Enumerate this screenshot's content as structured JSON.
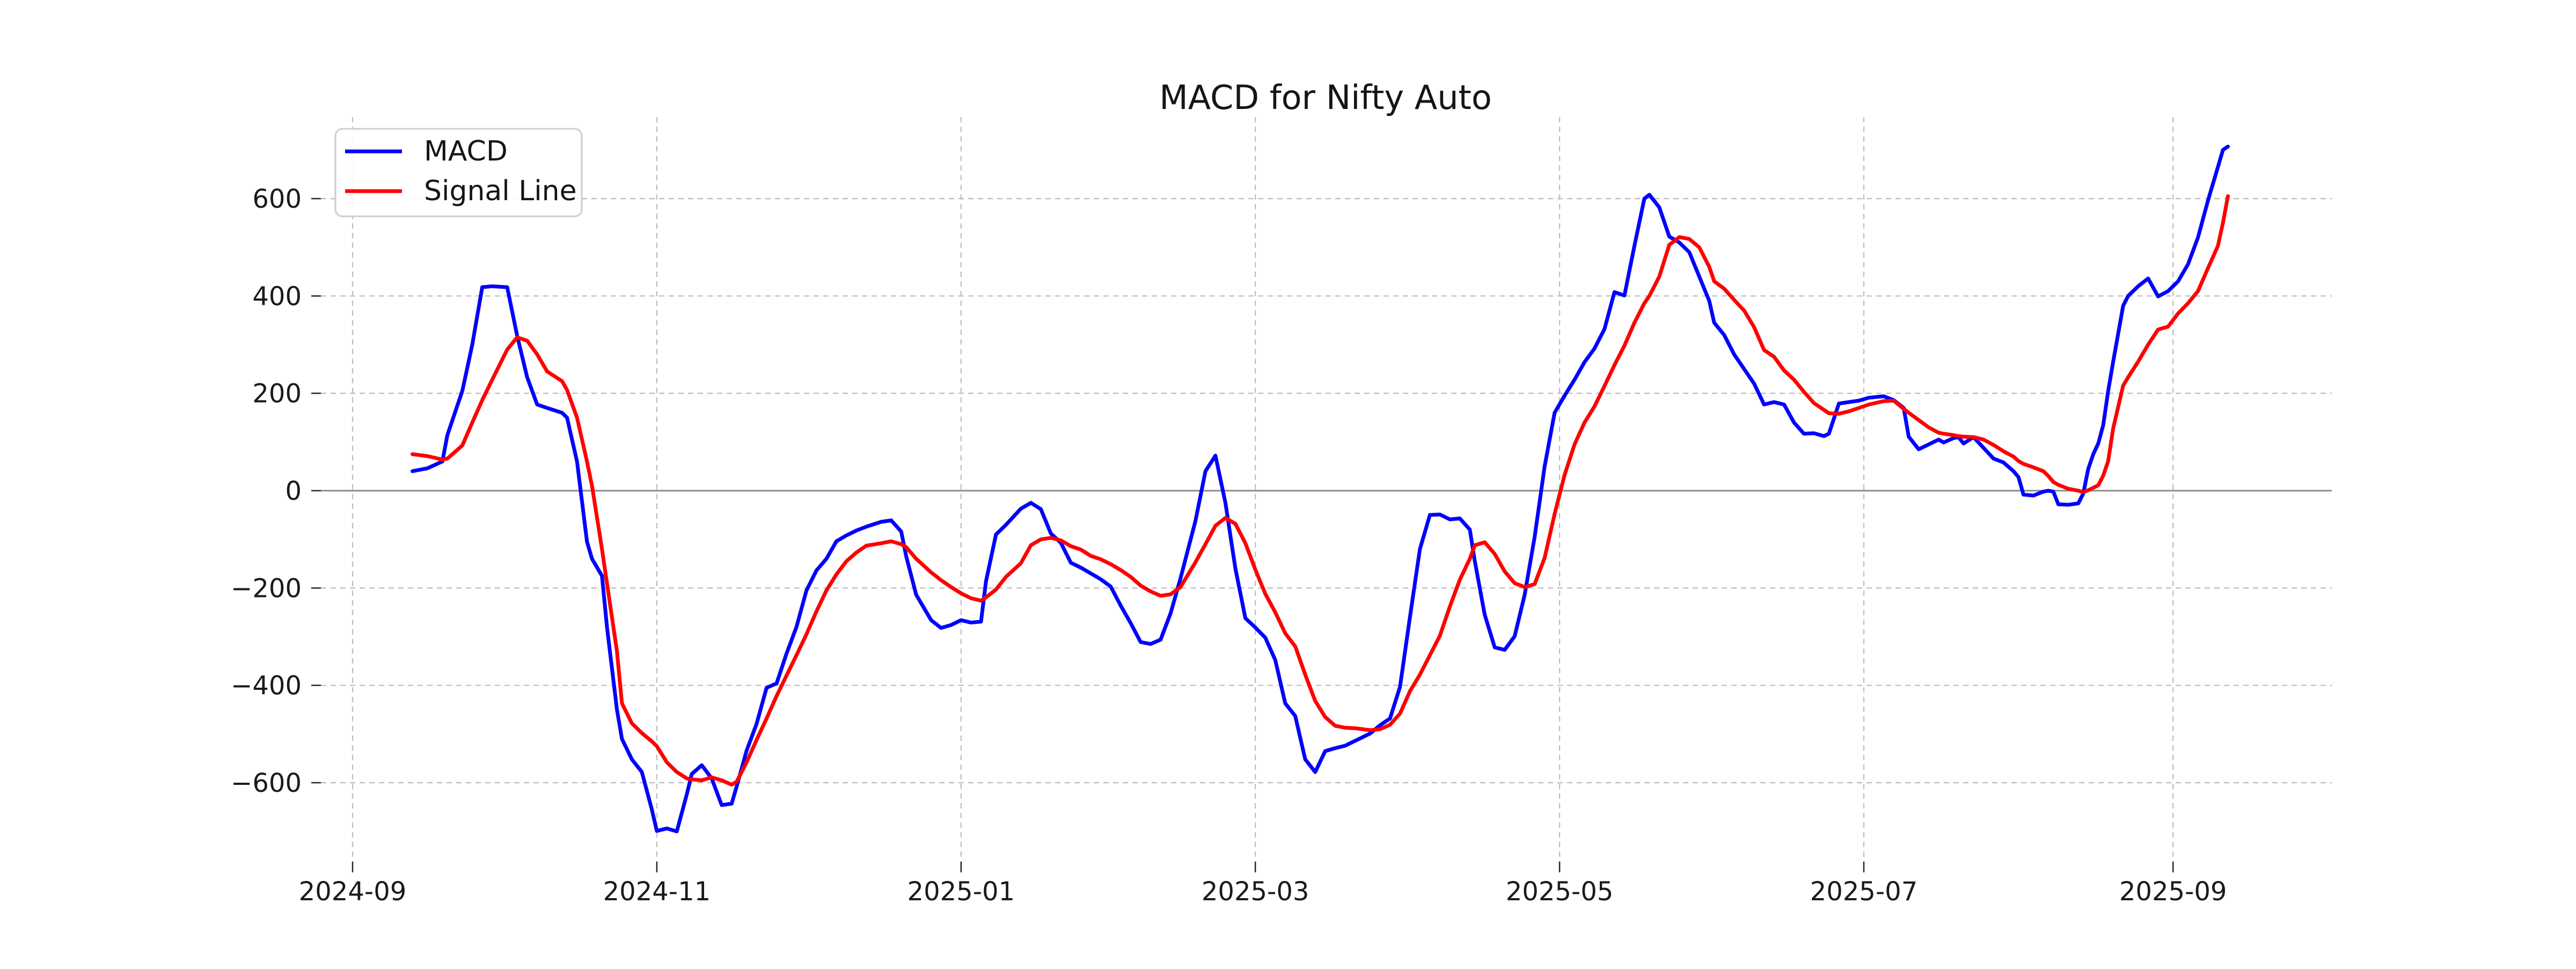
{
  "title": "MACD for Nifty Auto",
  "colors": {
    "macd": "#0000ff",
    "signal": "#ff0000",
    "grid": "#bdbdbd",
    "zero_line": "#8c8c8c",
    "text": "#1a1a1a",
    "legend_border": "#cdcdcd",
    "background": "#ffffff"
  },
  "legend": {
    "position": "upper left",
    "items": [
      {
        "label": "MACD",
        "color_key": "macd"
      },
      {
        "label": "Signal Line",
        "color_key": "signal"
      }
    ]
  },
  "axes": {
    "y_tick_labels": [
      "600",
      "400",
      "200",
      "0",
      "−200",
      "−400",
      "−600"
    ],
    "y_tick_values": [
      600,
      400,
      200,
      0,
      -200,
      -400,
      -600
    ],
    "x_tick_labels": [
      "2024-09",
      "2024-11",
      "2025-01",
      "2025-03",
      "2025-05",
      "2025-07",
      "2025-09"
    ],
    "x_tick_day_offsets": [
      0,
      61,
      122,
      181,
      242,
      303,
      365
    ],
    "ylim": [
      -762,
      768
    ],
    "grid": "dashed",
    "zero_line": true
  },
  "chart_data": {
    "type": "line",
    "title": "MACD for Nifty Auto",
    "xlabel": "",
    "ylabel": "",
    "x_range": [
      "2024-09-13",
      "2025-09-12"
    ],
    "legend_position": "upper left",
    "series_names": [
      "MACD",
      "Signal Line"
    ],
    "points_format": [
      "date",
      "MACD",
      "Signal Line"
    ],
    "points": [
      [
        "2024-09-13",
        40,
        75
      ],
      [
        "2024-09-16",
        46,
        71
      ],
      [
        "2024-09-19",
        60,
        64
      ],
      [
        "2024-09-20",
        114,
        66
      ],
      [
        "2024-09-23",
        205,
        93
      ],
      [
        "2024-09-25",
        300,
        140
      ],
      [
        "2024-09-27",
        418,
        186
      ],
      [
        "2024-09-29",
        420,
        228
      ],
      [
        "2024-10-02",
        418,
        290
      ],
      [
        "2024-10-04",
        318,
        315
      ],
      [
        "2024-10-06",
        233,
        308
      ],
      [
        "2024-10-08",
        177,
        280
      ],
      [
        "2024-10-10",
        170,
        245
      ],
      [
        "2024-10-13",
        160,
        225
      ],
      [
        "2024-10-14",
        150,
        207
      ],
      [
        "2024-10-16",
        60,
        150
      ],
      [
        "2024-10-18",
        -105,
        60
      ],
      [
        "2024-10-19",
        -140,
        10
      ],
      [
        "2024-10-21",
        -175,
        -120
      ],
      [
        "2024-10-22",
        -280,
        -190
      ],
      [
        "2024-10-24",
        -450,
        -330
      ],
      [
        "2024-10-25",
        -510,
        -437
      ],
      [
        "2024-10-27",
        -552,
        -478
      ],
      [
        "2024-10-29",
        -578,
        -498
      ],
      [
        "2024-10-31",
        -655,
        -515
      ],
      [
        "2024-11-01",
        -699,
        -525
      ],
      [
        "2024-11-03",
        -694,
        -558
      ],
      [
        "2024-11-05",
        -700,
        -578
      ],
      [
        "2024-11-07",
        -624,
        -591
      ],
      [
        "2024-11-08",
        -582,
        -593
      ],
      [
        "2024-11-10",
        -564,
        -595
      ],
      [
        "2024-11-12",
        -591,
        -589
      ],
      [
        "2024-11-14",
        -646,
        -595
      ],
      [
        "2024-11-16",
        -643,
        -604
      ],
      [
        "2024-11-17",
        -608,
        -598
      ],
      [
        "2024-11-19",
        -534,
        -558
      ],
      [
        "2024-11-21",
        -479,
        -512
      ],
      [
        "2024-11-23",
        -405,
        -468
      ],
      [
        "2024-11-25",
        -396,
        -422
      ],
      [
        "2024-11-27",
        -335,
        -380
      ],
      [
        "2024-11-29",
        -280,
        -338
      ],
      [
        "2024-12-01",
        -205,
        -295
      ],
      [
        "2024-12-03",
        -164,
        -248
      ],
      [
        "2024-12-05",
        -140,
        -205
      ],
      [
        "2024-12-07",
        -104,
        -172
      ],
      [
        "2024-12-09",
        -92,
        -145
      ],
      [
        "2024-12-11",
        -82,
        -127
      ],
      [
        "2024-12-13",
        -74,
        -113
      ],
      [
        "2024-12-16",
        -64,
        -108
      ],
      [
        "2024-12-18",
        -61,
        -104
      ],
      [
        "2024-12-20",
        -84,
        -110
      ],
      [
        "2024-12-21",
        -135,
        -116
      ],
      [
        "2024-12-23",
        -214,
        -140
      ],
      [
        "2024-12-26",
        -266,
        -168
      ],
      [
        "2024-12-28",
        -282,
        -184
      ],
      [
        "2024-12-30",
        -276,
        -198
      ],
      [
        "2025-01-01",
        -266,
        -211
      ],
      [
        "2025-01-03",
        -271,
        -221
      ],
      [
        "2025-01-05",
        -269,
        -226
      ],
      [
        "2025-01-06",
        -186,
        -219
      ],
      [
        "2025-01-08",
        -90,
        -203
      ],
      [
        "2025-01-10",
        -70,
        -177
      ],
      [
        "2025-01-13",
        -37,
        -149
      ],
      [
        "2025-01-15",
        -25,
        -112
      ],
      [
        "2025-01-17",
        -38,
        -100
      ],
      [
        "2025-01-19",
        -88,
        -97
      ],
      [
        "2025-01-21",
        -107,
        -102
      ],
      [
        "2025-01-23",
        -148,
        -114
      ],
      [
        "2025-01-25",
        -158,
        -121
      ],
      [
        "2025-01-27",
        -170,
        -134
      ],
      [
        "2025-01-29",
        -182,
        -141
      ],
      [
        "2025-01-31",
        -197,
        -151
      ],
      [
        "2025-02-02",
        -236,
        -163
      ],
      [
        "2025-02-04",
        -272,
        -177
      ],
      [
        "2025-02-06",
        -311,
        -195
      ],
      [
        "2025-02-08",
        -315,
        -207
      ],
      [
        "2025-02-10",
        -306,
        -216
      ],
      [
        "2025-02-12",
        -252,
        -213
      ],
      [
        "2025-02-14",
        -180,
        -198
      ],
      [
        "2025-02-17",
        -62,
        -147
      ],
      [
        "2025-02-19",
        40,
        -110
      ],
      [
        "2025-02-21",
        72,
        -72
      ],
      [
        "2025-02-23",
        -25,
        -56
      ],
      [
        "2025-02-25",
        -160,
        -68
      ],
      [
        "2025-02-27",
        -262,
        -108
      ],
      [
        "2025-03-01",
        -281,
        -162
      ],
      [
        "2025-03-03",
        -302,
        -212
      ],
      [
        "2025-03-05",
        -348,
        -250
      ],
      [
        "2025-03-07",
        -437,
        -293
      ],
      [
        "2025-03-09",
        -463,
        -320
      ],
      [
        "2025-03-11",
        -552,
        -378
      ],
      [
        "2025-03-13",
        -578,
        -432
      ],
      [
        "2025-03-15",
        -535,
        -465
      ],
      [
        "2025-03-17",
        -529,
        -483
      ],
      [
        "2025-03-19",
        -524,
        -487
      ],
      [
        "2025-03-21",
        -514,
        -488
      ],
      [
        "2025-03-24",
        -499,
        -492
      ],
      [
        "2025-03-26",
        -482,
        -490
      ],
      [
        "2025-03-28",
        -468,
        -481
      ],
      [
        "2025-03-30",
        -403,
        -458
      ],
      [
        "2025-04-01",
        -260,
        -412
      ],
      [
        "2025-04-03",
        -120,
        -378
      ],
      [
        "2025-04-05",
        -50,
        -338
      ],
      [
        "2025-04-07",
        -49,
        -298
      ],
      [
        "2025-04-09",
        -59,
        -238
      ],
      [
        "2025-04-11",
        -57,
        -183
      ],
      [
        "2025-04-13",
        -80,
        -140
      ],
      [
        "2025-04-14",
        -145,
        -112
      ],
      [
        "2025-04-16",
        -255,
        -106
      ],
      [
        "2025-04-18",
        -322,
        -130
      ],
      [
        "2025-04-20",
        -327,
        -166
      ],
      [
        "2025-04-22",
        -299,
        -190
      ],
      [
        "2025-04-24",
        -214,
        -198
      ],
      [
        "2025-04-26",
        -95,
        -192
      ],
      [
        "2025-04-28",
        50,
        -138
      ],
      [
        "2025-04-30",
        160,
        -48
      ],
      [
        "2025-05-02",
        195,
        32
      ],
      [
        "2025-05-04",
        228,
        95
      ],
      [
        "2025-05-06",
        264,
        140
      ],
      [
        "2025-05-08",
        292,
        173
      ],
      [
        "2025-05-10",
        332,
        215
      ],
      [
        "2025-05-12",
        408,
        258
      ],
      [
        "2025-05-14",
        401,
        298
      ],
      [
        "2025-05-16",
        503,
        345
      ],
      [
        "2025-05-18",
        600,
        385
      ],
      [
        "2025-05-19",
        608,
        400
      ],
      [
        "2025-05-21",
        582,
        440
      ],
      [
        "2025-05-23",
        522,
        505
      ],
      [
        "2025-05-25",
        510,
        521
      ],
      [
        "2025-05-27",
        490,
        517
      ],
      [
        "2025-05-29",
        440,
        500
      ],
      [
        "2025-05-31",
        390,
        460
      ],
      [
        "2025-06-01",
        345,
        430
      ],
      [
        "2025-06-03",
        320,
        415
      ],
      [
        "2025-06-05",
        280,
        392
      ],
      [
        "2025-06-07",
        250,
        370
      ],
      [
        "2025-06-09",
        220,
        336
      ],
      [
        "2025-06-11",
        177,
        289
      ],
      [
        "2025-06-13",
        182,
        275
      ],
      [
        "2025-06-15",
        177,
        247
      ],
      [
        "2025-06-17",
        140,
        228
      ],
      [
        "2025-06-19",
        117,
        203
      ],
      [
        "2025-06-21",
        118,
        180
      ],
      [
        "2025-06-23",
        112,
        166
      ],
      [
        "2025-06-24",
        117,
        159
      ],
      [
        "2025-06-26",
        179,
        158
      ],
      [
        "2025-06-28",
        182,
        163
      ],
      [
        "2025-06-30",
        185,
        170
      ],
      [
        "2025-07-02",
        191,
        177
      ],
      [
        "2025-07-05",
        194,
        184
      ],
      [
        "2025-07-07",
        186,
        185
      ],
      [
        "2025-07-09",
        170,
        168
      ],
      [
        "2025-07-10",
        111,
        160
      ],
      [
        "2025-07-12",
        85,
        145
      ],
      [
        "2025-07-14",
        95,
        130
      ],
      [
        "2025-07-16",
        105,
        119
      ],
      [
        "2025-07-17",
        99,
        117
      ],
      [
        "2025-07-19",
        108,
        114
      ],
      [
        "2025-07-20",
        110,
        112
      ],
      [
        "2025-07-21",
        97,
        111
      ],
      [
        "2025-07-23",
        110,
        110
      ],
      [
        "2025-07-25",
        88,
        105
      ],
      [
        "2025-07-27",
        66,
        94
      ],
      [
        "2025-07-29",
        58,
        81
      ],
      [
        "2025-07-31",
        40,
        70
      ],
      [
        "2025-08-01",
        28,
        61
      ],
      [
        "2025-08-02",
        -8,
        55
      ],
      [
        "2025-08-04",
        -10,
        48
      ],
      [
        "2025-08-06",
        -2,
        40
      ],
      [
        "2025-08-07",
        0,
        30
      ],
      [
        "2025-08-08",
        -2,
        18
      ],
      [
        "2025-08-09",
        -28,
        12
      ],
      [
        "2025-08-11",
        -29,
        4
      ],
      [
        "2025-08-13",
        -26,
        0
      ],
      [
        "2025-08-14",
        -6,
        -3
      ],
      [
        "2025-08-15",
        45,
        1
      ],
      [
        "2025-08-16",
        75,
        6
      ],
      [
        "2025-08-17",
        97,
        11
      ],
      [
        "2025-08-18",
        135,
        31
      ],
      [
        "2025-08-19",
        205,
        61
      ],
      [
        "2025-08-20",
        265,
        128
      ],
      [
        "2025-08-22",
        380,
        216
      ],
      [
        "2025-08-23",
        400,
        233
      ],
      [
        "2025-08-25",
        420,
        265
      ],
      [
        "2025-08-27",
        436,
        300
      ],
      [
        "2025-08-29",
        399,
        331
      ],
      [
        "2025-08-31",
        410,
        337
      ],
      [
        "2025-09-02",
        430,
        364
      ],
      [
        "2025-09-04",
        465,
        385
      ],
      [
        "2025-09-06",
        520,
        410
      ],
      [
        "2025-09-08",
        596,
        457
      ],
      [
        "2025-09-10",
        665,
        503
      ],
      [
        "2025-09-11",
        700,
        550
      ],
      [
        "2025-09-12",
        707,
        605
      ]
    ]
  }
}
